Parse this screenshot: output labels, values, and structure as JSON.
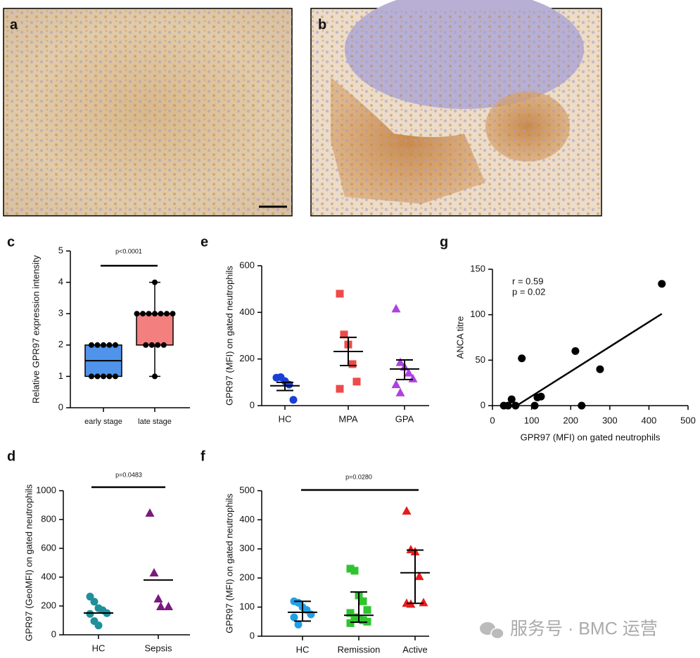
{
  "images": [
    {
      "label": "a"
    },
    {
      "label": "b"
    }
  ],
  "chart_data": [
    {
      "type": "box",
      "label": "c",
      "ylabel": "Relative GPR97 expression intensity",
      "categories": [
        "early stage",
        "late stage"
      ],
      "ylim": [
        0,
        5
      ],
      "yticks": [
        0,
        1,
        2,
        3,
        4,
        5
      ],
      "colors": [
        "#4f94ea",
        "#f47f7f"
      ],
      "box": [
        {
          "min": 1,
          "q1": 1,
          "median": 1.5,
          "q3": 2,
          "max": 2
        },
        {
          "min": 1,
          "q1": 2,
          "median": 3,
          "q3": 3,
          "max": 4
        }
      ],
      "points": [
        [
          2,
          2,
          2,
          2,
          2,
          1,
          1,
          1,
          1,
          1
        ],
        [
          4,
          3,
          3,
          3,
          3,
          3,
          3,
          3,
          2,
          2,
          2,
          2,
          1
        ]
      ],
      "annotation": "p<0.0001"
    },
    {
      "type": "dot",
      "label": "d",
      "ylabel": "GPR97 (GeoMFI) on gated neutrophils",
      "categories": [
        "HC",
        "Sepsis"
      ],
      "ylim": [
        0,
        1000
      ],
      "yticks": [
        0,
        200,
        400,
        600,
        800,
        1000
      ],
      "colors": [
        "#1f8f9a",
        "#7a1a7e"
      ],
      "markers": [
        "circle",
        "triangle"
      ],
      "values": [
        [
          265,
          230,
          185,
          170,
          150,
          145,
          95,
          65
        ],
        [
          844,
          429,
          249,
          195,
          195
        ]
      ],
      "center": [
        151,
        380
      ],
      "annotation": "p=0.0483"
    },
    {
      "type": "dot",
      "label": "e",
      "ylabel": "GPR97 (MFI) on gated neutrophils",
      "categories": [
        "HC",
        "MPA",
        "GPA"
      ],
      "ylim": [
        0,
        600
      ],
      "yticks": [
        0,
        200,
        400,
        600
      ],
      "colors": [
        "#1a3fd6",
        "#ef4a4a",
        "#b040e0"
      ],
      "markers": [
        "circle",
        "square",
        "triangle"
      ],
      "values": [
        [
          120,
          122,
          105,
          90,
          25
        ],
        [
          480,
          305,
          262,
          178,
          103,
          72
        ],
        [
          415,
          185,
          165,
          140,
          115,
          90,
          55
        ]
      ],
      "center": [
        85,
        232,
        157
      ],
      "upper": [
        100,
        293,
        196
      ],
      "lower": [
        65,
        172,
        112
      ]
    },
    {
      "type": "dot",
      "label": "f",
      "ylabel": "GPR97 (MFI) on gated neutrophils",
      "categories": [
        "HC",
        "Remission",
        "Active"
      ],
      "ylim": [
        0,
        500
      ],
      "yticks": [
        0,
        100,
        200,
        300,
        400,
        500
      ],
      "colors": [
        "#1ea0e8",
        "#2fc42f",
        "#e81c1c"
      ],
      "markers": [
        "circle",
        "square",
        "triangle"
      ],
      "values": [
        [
          120,
          115,
          100,
          90,
          75,
          65,
          40
        ],
        [
          232,
          225,
          140,
          120,
          90,
          80,
          65,
          60,
          55,
          50,
          45
        ],
        [
          430,
          297,
          290,
          205,
          115,
          113,
          110
        ]
      ],
      "center": [
        82,
        72,
        218
      ],
      "upper": [
        120,
        152,
        296
      ],
      "lower": [
        52,
        48,
        113
      ],
      "annotation": "p=0.0280"
    },
    {
      "type": "scatter",
      "label": "g",
      "xlabel": "GPR97 (MFI) on gated neutrophils",
      "ylabel": "ANCA titre",
      "xlim": [
        0,
        500
      ],
      "xticks": [
        0,
        100,
        200,
        300,
        400,
        500
      ],
      "ylim": [
        0,
        150
      ],
      "yticks": [
        0,
        50,
        100,
        150
      ],
      "color": "#000000",
      "x": [
        433,
        75,
        212,
        275,
        29,
        40,
        49,
        59,
        108,
        115,
        124,
        228
      ],
      "y": [
        134,
        52,
        60,
        40,
        0,
        0,
        7,
        0,
        0,
        9,
        10,
        0
      ],
      "fit": {
        "x": [
          62,
          433
        ],
        "y": [
          0,
          101
        ]
      },
      "annotations": [
        "r = 0.59",
        "p = 0.02"
      ]
    }
  ],
  "watermark": "服务号 · BMC 运营"
}
